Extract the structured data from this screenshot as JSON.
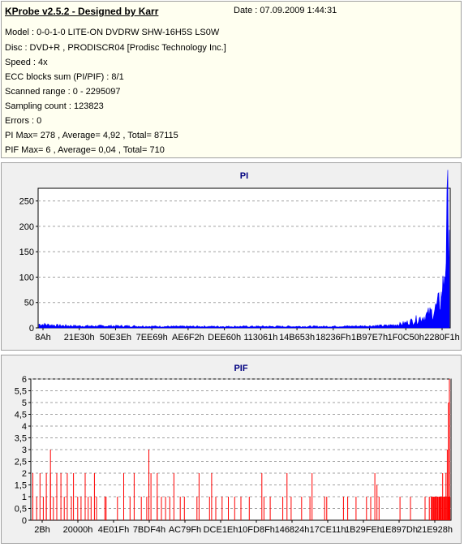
{
  "info": {
    "title": "KProbe v2.5.2 - Designed by Karr",
    "date": "Date : 07.09.2009 1:44:31",
    "lines": [
      "Model : 0-0-1-0 LITE-ON DVDRW SHW-16H5S  LS0W",
      "Disc : DVD+R , PRODISCR04 [Prodisc Technology Inc.]",
      "Speed : 4x",
      "ECC blocks sum (PI/PIF) : 8/1",
      "Scanned range : 0 - 2295097",
      "Sampling count : 123823",
      "Errors : 0",
      "PI Max= 278 , Average= 4,92 , Total= 87115",
      "PIF Max= 6 , Average= 0,04 , Total= 710"
    ]
  },
  "colors": {
    "pi_series": "#0000ff",
    "pif_series": "#ff0000",
    "title": "#000080",
    "plot_bg": "#ffffff",
    "panel_bg": "#f0f0f0"
  },
  "chart_data": [
    {
      "type": "area",
      "title": "PI",
      "xlabel": "",
      "ylabel": "",
      "ylim": [
        0,
        275
      ],
      "yticks": [
        0,
        50,
        100,
        150,
        200,
        250
      ],
      "xtick_labels": [
        "8Ah",
        "21E30h",
        "50E3Eh",
        "7EE69h",
        "AE6F2h",
        "DEE60h",
        "113061h",
        "14B653h",
        "18236Fh",
        "1B97E7h",
        "1F0C50h",
        "2280F1h"
      ],
      "grid": "horizontal-dashed",
      "legend": "none",
      "series": [
        {
          "x_fraction": [
            0,
            0.05,
            0.1,
            0.2,
            0.3,
            0.4,
            0.5,
            0.6,
            0.7,
            0.8,
            0.85,
            0.88,
            0.9,
            0.92,
            0.94,
            0.96,
            0.97,
            0.98,
            0.985,
            0.99,
            0.995,
            1.0
          ],
          "values": [
            8,
            5,
            4,
            4,
            3,
            3,
            3,
            3,
            3,
            4,
            5,
            8,
            12,
            18,
            25,
            35,
            45,
            65,
            90,
            150,
            220,
            270
          ]
        }
      ]
    },
    {
      "type": "bar",
      "title": "PIF",
      "xlabel": "",
      "ylabel": "",
      "ylim": [
        0,
        6
      ],
      "yticks": [
        0,
        0.5,
        1,
        1.5,
        2,
        2.5,
        3,
        3.5,
        4,
        4.5,
        5,
        5.5,
        6
      ],
      "ytick_labels": [
        "0",
        "0,5",
        "1",
        "1,5",
        "2",
        "2,5",
        "3",
        "3,5",
        "4",
        "4,5",
        "5",
        "5,5",
        "6"
      ],
      "xtick_labels": [
        "2Bh",
        "20000h",
        "4E01Fh",
        "7BDF4h",
        "AC79Fh",
        "DCE1Eh",
        "10FD8Fh",
        "146824h",
        "17CE11h",
        "1B29FEh",
        "1E897Dh",
        "21E928h"
      ],
      "grid": "horizontal-dashed",
      "legend": "none",
      "series": [
        {
          "spikes": [
            [
              0.003,
              2
            ],
            [
              0.012,
              1
            ],
            [
              0.02,
              2
            ],
            [
              0.028,
              1
            ],
            [
              0.035,
              1
            ],
            [
              0.045,
              2
            ],
            [
              0.052,
              1
            ],
            [
              0.06,
              1
            ],
            [
              0.07,
              2
            ],
            [
              0.078,
              1
            ],
            [
              0.085,
              2
            ],
            [
              0.095,
              1
            ],
            [
              0.1,
              2
            ],
            [
              0.11,
              1
            ],
            [
              0.118,
              1
            ],
            [
              0.128,
              2
            ],
            [
              0.135,
              1
            ],
            [
              0.142,
              1
            ],
            [
              0.155,
              1
            ],
            [
              0.175,
              1
            ],
            [
              0.178,
              1
            ],
            [
              0.205,
              1
            ],
            [
              0.22,
              2
            ],
            [
              0.235,
              1
            ],
            [
              0.245,
              2
            ],
            [
              0.262,
              1
            ],
            [
              0.275,
              1
            ],
            [
              0.285,
              2
            ],
            [
              0.3,
              1
            ],
            [
              0.31,
              1
            ],
            [
              0.32,
              1
            ],
            [
              0.33,
              1
            ],
            [
              0.34,
              2
            ],
            [
              0.355,
              1
            ],
            [
              0.365,
              1
            ],
            [
              0.395,
              1
            ],
            [
              0.425,
              1
            ],
            [
              0.44,
              1
            ],
            [
              0.455,
              1
            ],
            [
              0.47,
              1
            ],
            [
              0.485,
              1
            ],
            [
              0.5,
              1
            ],
            [
              0.52,
              1
            ],
            [
              0.555,
              1
            ],
            [
              0.57,
              1
            ],
            [
              0.6,
              1
            ],
            [
              0.62,
              1
            ],
            [
              0.645,
              1
            ],
            [
              0.665,
              1
            ],
            [
              0.7,
              1
            ],
            [
              0.705,
              1
            ],
            [
              0.745,
              1
            ],
            [
              0.755,
              1
            ],
            [
              0.775,
              1
            ],
            [
              0.8,
              1
            ],
            [
              0.81,
              1
            ],
            [
              0.83,
              1
            ],
            [
              0.88,
              1
            ],
            [
              0.905,
              1
            ],
            [
              0.94,
              1
            ],
            [
              0.95,
              1
            ],
            [
              0.955,
              1
            ],
            [
              0.96,
              1
            ],
            [
              0.965,
              1
            ],
            [
              0.97,
              1
            ],
            [
              0.975,
              1
            ],
            [
              0.978,
              1
            ],
            [
              0.982,
              2
            ],
            [
              0.985,
              1
            ],
            [
              0.988,
              1
            ],
            [
              0.99,
              2
            ],
            [
              0.993,
              3
            ],
            [
              0.996,
              5
            ],
            [
              0.998,
              6
            ]
          ],
          "extra_spikes": [
            [
              0.035,
              2
            ],
            [
              0.06,
              2
            ],
            [
              0.15,
              2
            ],
            [
              0.3,
              2
            ],
            [
              0.4,
              2
            ],
            [
              0.43,
              2
            ],
            [
              0.55,
              2
            ],
            [
              0.61,
              2
            ],
            [
              0.67,
              2
            ],
            [
              0.82,
              2
            ],
            [
              0.825,
              1.5
            ],
            [
              0.28,
              3
            ],
            [
              0.045,
              3
            ]
          ]
        }
      ]
    }
  ]
}
